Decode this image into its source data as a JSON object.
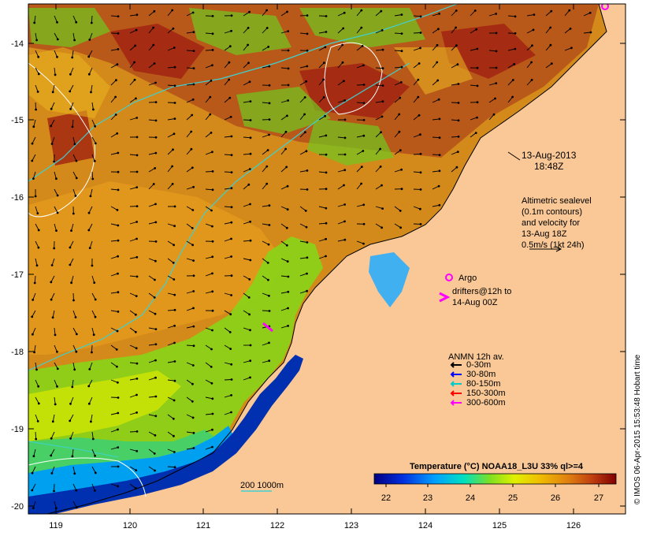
{
  "map": {
    "date": "13-Aug-2013",
    "time": "18:48Z",
    "altimetry_lines": [
      "Altimetric sealevel",
      "(0.1m contours)",
      "and velocity for",
      "13-Aug 18Z",
      "0.5m/s (1kt 24h)"
    ],
    "argo_label": "Argo",
    "drifters_lines": [
      "drifters@12h to",
      "14-Aug 00Z"
    ],
    "anmn_title": "ANMN 12h av.",
    "anmn_legend": [
      {
        "label": "0-30m",
        "color": "#000000"
      },
      {
        "label": "30-80m",
        "color": "#0000ff"
      },
      {
        "label": "80-150m",
        "color": "#00cccc"
      },
      {
        "label": "150-300m",
        "color": "#ff0000"
      },
      {
        "label": "300-600m",
        "color": "#ff00ff"
      }
    ],
    "isobath_label": "200  1000m",
    "colorbar_title": "Temperature (°C) NOAA18_L3U 33% ql>=4",
    "colorbar_ticks": [
      "22",
      "23",
      "24",
      "25",
      "26",
      "27"
    ],
    "credit": "© IMOS 06-Apr-2015 15:53:48 Hobart time",
    "lon_ticks": [
      "119",
      "120",
      "121",
      "122",
      "123",
      "124",
      "125",
      "126"
    ],
    "lat_ticks": [
      "-14",
      "-15",
      "-16",
      "-17",
      "-18",
      "-19",
      "-20"
    ],
    "colors": {
      "land": "#f9c896",
      "warm": "#c5700d",
      "hot": "#a02010",
      "mid": "#e8b020",
      "green": "#7ad41a",
      "cool": "#00a0f0",
      "deep": "#0020a0",
      "isobath": "#40d0d0"
    }
  }
}
